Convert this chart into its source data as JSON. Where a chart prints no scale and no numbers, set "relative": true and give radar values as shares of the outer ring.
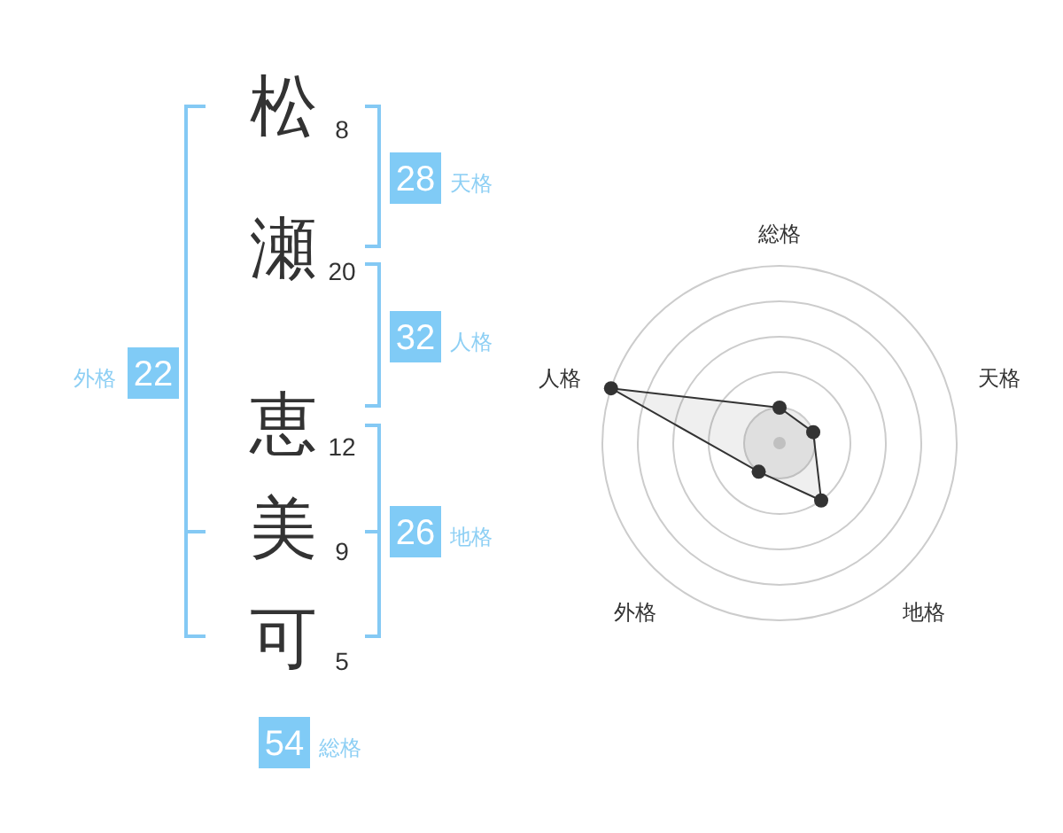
{
  "chart_data": [
    {
      "type": "other",
      "categories": [
        "松",
        "瀬",
        "恵",
        "美",
        "可",
        "天格",
        "人格",
        "地格",
        "外格",
        "総格"
      ],
      "values": [
        8,
        20,
        12,
        9,
        5,
        28,
        32,
        26,
        22,
        54
      ],
      "data_labels": true
    },
    {
      "type": "radar",
      "categories": [
        "総格",
        "天格",
        "地格",
        "外格",
        "人格"
      ],
      "relative": true,
      "grid": true,
      "marker": "circle",
      "series": [
        {
          "color": "#333333",
          "values": [
            0.2,
            0.2,
            0.4,
            0.2,
            1
          ]
        }
      ]
    }
  ]
}
